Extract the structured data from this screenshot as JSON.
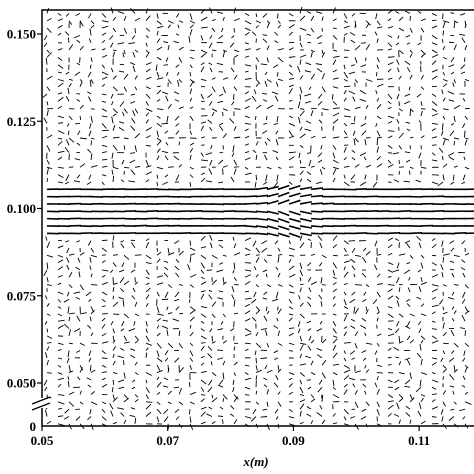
{
  "chart_data": {
    "type": "quiver",
    "title": "",
    "xlabel": "x(m)",
    "ylabel": "",
    "xlim": [
      0.05,
      0.12
    ],
    "ylim": [
      0.04,
      0.155
    ],
    "x_ticks": [
      0.05,
      0.07,
      0.09,
      0.11
    ],
    "x_tick_labels": [
      "0.05",
      "0.07",
      "0.09",
      "0.11"
    ],
    "y_ticks": [
      0.05,
      0.075,
      0.1,
      0.125,
      0.15
    ],
    "y_tick_labels": [
      "0.050",
      "0.075",
      "0.100",
      "0.125",
      "0.150"
    ],
    "y_axis_break": true,
    "y_origin_label": "0",
    "grid": false,
    "colors": {
      "arrows": "#000000",
      "axes": "#000000",
      "background": "#ffffff"
    },
    "jet": {
      "center_y": 0.1,
      "half_width": 0.0075,
      "peak_speed": 1.0,
      "disturbance_x": 0.088,
      "description_free_field": "random small vectors"
    },
    "grid_spacing": {
      "dx": 0.00175,
      "dy": 0.0021
    }
  }
}
